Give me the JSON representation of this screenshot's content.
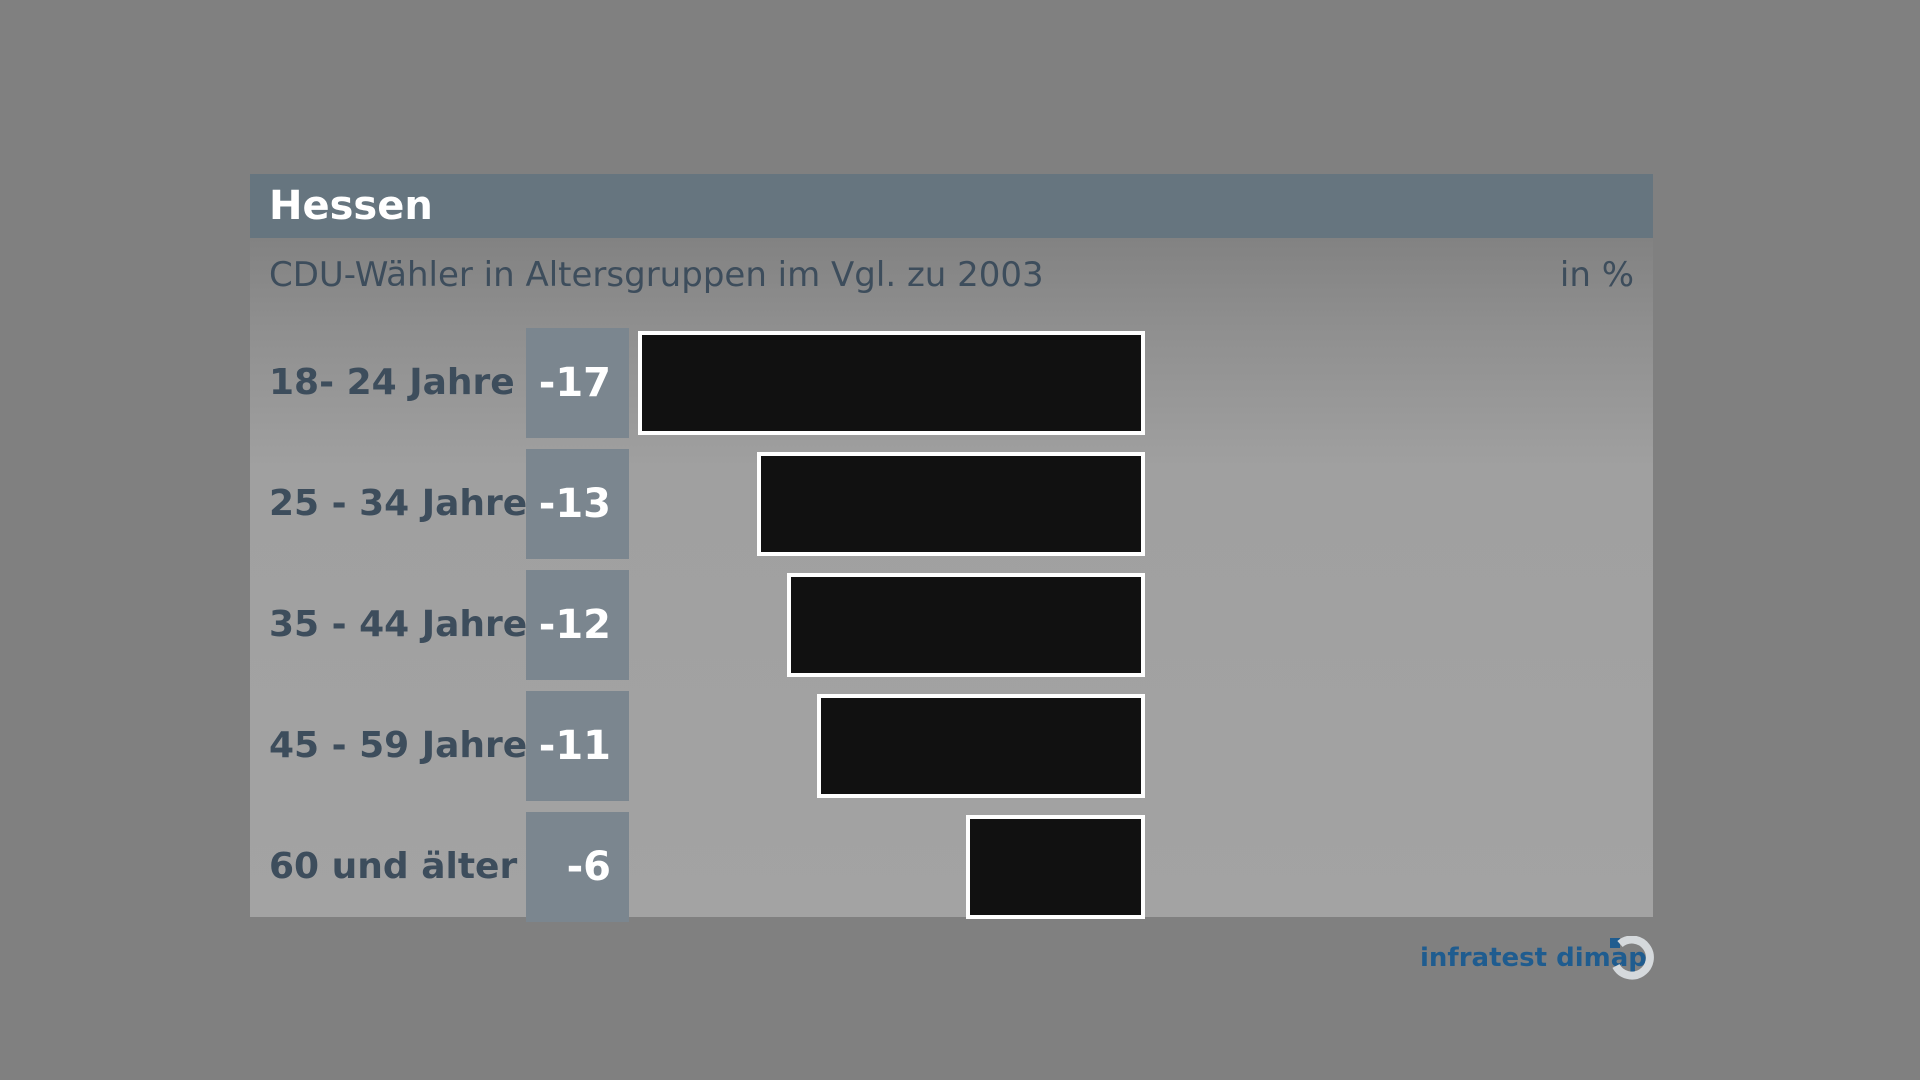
{
  "header": {
    "title": "Hessen"
  },
  "subtitle": "CDU-Wähler in Altersgruppen im Vgl. zu 2003",
  "unit": "in %",
  "brand": "infratest dimap",
  "chart_data": {
    "type": "bar",
    "orientation": "horizontal",
    "title": "Hessen",
    "subtitle": "CDU-Wähler in Altersgruppen im Vgl. zu 2003",
    "unit": "in %",
    "categories": [
      "18- 24 Jahre",
      "25 - 34 Jahre",
      "35 - 44 Jahre",
      "45 - 59 Jahre",
      "60 und älter"
    ],
    "values": [
      -17,
      -13,
      -12,
      -11,
      -6
    ],
    "value_labels": [
      "-17",
      "-13",
      "-12",
      "-11",
      "-6"
    ],
    "grid": false,
    "legend": "none",
    "colors": {
      "bar": "#111111",
      "bar_border": "#ffffff",
      "value_box": "#7b868f",
      "header": "#66757f"
    }
  }
}
